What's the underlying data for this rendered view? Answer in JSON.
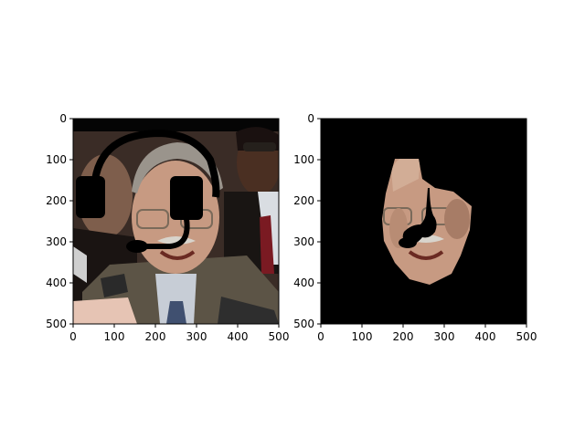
{
  "chart_data": [
    {
      "type": "image",
      "xlim": [
        0,
        500
      ],
      "ylim": [
        500,
        0
      ],
      "xticks": [
        0,
        100,
        200,
        300,
        400,
        500
      ],
      "yticks": [
        0,
        100,
        200,
        300,
        400,
        500
      ],
      "xtick_labels": [
        "0",
        "100",
        "200",
        "300",
        "400",
        "500"
      ],
      "ytick_labels": [
        "0",
        "100",
        "200",
        "300",
        "400",
        "500"
      ],
      "content": "photo",
      "grid": false
    },
    {
      "type": "image",
      "xlim": [
        0,
        500
      ],
      "ylim": [
        500,
        0
      ],
      "xticks": [
        0,
        100,
        200,
        300,
        400,
        500
      ],
      "yticks": [
        0,
        100,
        200,
        300,
        400,
        500
      ],
      "xtick_labels": [
        "0",
        "100",
        "200",
        "300",
        "400",
        "500"
      ],
      "ytick_labels": [
        "0",
        "100",
        "200",
        "300",
        "400",
        "500"
      ],
      "content": "masked-face",
      "grid": false
    }
  ]
}
